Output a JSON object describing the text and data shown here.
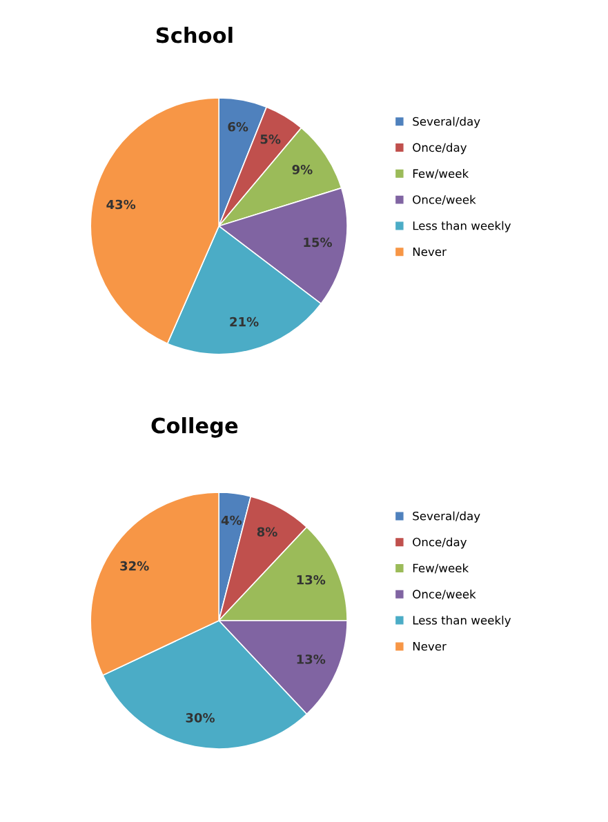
{
  "chart_data": [
    {
      "type": "pie",
      "title": "School",
      "categories": [
        "Several/day",
        "Once/day",
        "Few/week",
        "Once/week",
        "Less than weekly",
        "Never"
      ],
      "values": [
        6,
        5,
        9,
        15,
        21,
        43
      ],
      "value_labels": [
        "6%",
        "5%",
        "9%",
        "15%",
        "21%",
        "43%"
      ],
      "colors": [
        "#4f81bd",
        "#c0504d",
        "#9bbb59",
        "#8064a2",
        "#4bacc6",
        "#f79646"
      ],
      "legend": "right"
    },
    {
      "type": "pie",
      "title": "College",
      "categories": [
        "Several/day",
        "Once/day",
        "Few/week",
        "Once/week",
        "Less than weekly",
        "Never"
      ],
      "values": [
        4,
        8,
        13,
        13,
        30,
        32
      ],
      "value_labels": [
        "4%",
        "8%",
        "13%",
        "13%",
        "30%",
        "32%"
      ],
      "colors": [
        "#4f81bd",
        "#c0504d",
        "#9bbb59",
        "#8064a2",
        "#4bacc6",
        "#f79646"
      ],
      "legend": "right"
    }
  ]
}
